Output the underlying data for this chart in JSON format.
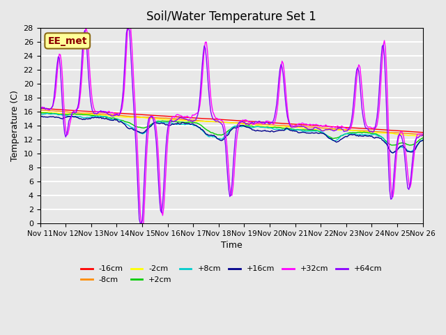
{
  "title": "Soil/Water Temperature Set 1",
  "xlabel": "Time",
  "ylabel": "Temperature (C)",
  "annotation": "EE_met",
  "annotation_color": "#8B0000",
  "annotation_bg": "#FFFF99",
  "annotation_border": "#8B6914",
  "ylim": [
    0,
    28
  ],
  "yticks": [
    0,
    2,
    4,
    6,
    8,
    10,
    12,
    14,
    16,
    18,
    20,
    22,
    24,
    26,
    28
  ],
  "xtick_labels": [
    "Nov 11",
    "Nov 12",
    "Nov 13",
    "Nov 14",
    "Nov 15",
    "Nov 16",
    "Nov 17",
    "Nov 18",
    "Nov 19",
    "Nov 20",
    "Nov 21",
    "Nov 22",
    "Nov 23",
    "Nov 24",
    "Nov 25",
    "Nov 26"
  ],
  "background_color": "#E8E8E8",
  "plot_bg_color": "#E8E8E8",
  "grid_color": "#FFFFFF",
  "series": [
    {
      "label": "-16cm",
      "color": "#FF0000"
    },
    {
      "label": "-8cm",
      "color": "#FF8C00"
    },
    {
      "label": "-2cm",
      "color": "#FFFF00"
    },
    {
      "label": "+2cm",
      "color": "#00CC00"
    },
    {
      "label": "+8cm",
      "color": "#00CCCC"
    },
    {
      "label": "+16cm",
      "color": "#00008B"
    },
    {
      "label": "+32cm",
      "color": "#FF00FF"
    },
    {
      "label": "+64cm",
      "color": "#8B00FF"
    }
  ]
}
